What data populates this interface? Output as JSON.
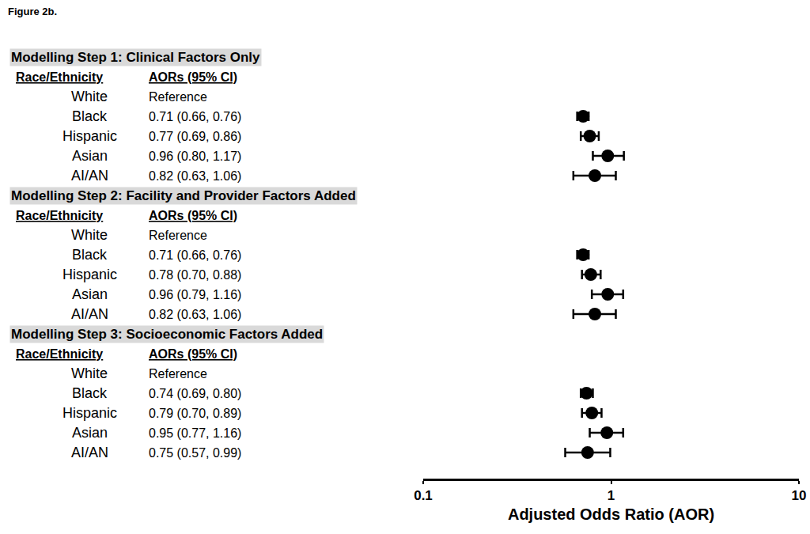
{
  "chart_data": {
    "type": "forest",
    "title": "Figure 2b.",
    "xlabel": "Adjusted Odds Ratio (AOR)",
    "log": "x",
    "grid": false,
    "xlim": [
      0.1,
      10
    ],
    "xticks": [
      0.1,
      1,
      10
    ],
    "reference_line": 1,
    "color": "#000000",
    "marker": "circle",
    "line_style": "dotted",
    "header": [
      "Race/Ethnicity",
      "AORs (95% CI)"
    ],
    "panels": [
      {
        "title": "Modelling Step 1: Clinical Factors Only",
        "categories": [
          "White",
          "Black",
          "Hispanic",
          "Asian",
          "AI/AN"
        ],
        "values": [
          null,
          0.71,
          0.77,
          0.96,
          0.82
        ],
        "lower": [
          null,
          0.66,
          0.69,
          0.8,
          0.63
        ],
        "upper": [
          null,
          0.76,
          0.86,
          1.17,
          1.06
        ],
        "value_labels": [
          "Reference",
          "0.71 (0.66, 0.76)",
          "0.77 (0.69, 0.86)",
          "0.96 (0.80, 1.17)",
          "0.82 (0.63, 1.06)"
        ]
      },
      {
        "title": "Modelling Step 2: Facility and Provider Factors Added",
        "categories": [
          "White",
          "Black",
          "Hispanic",
          "Asian",
          "AI/AN"
        ],
        "values": [
          null,
          0.71,
          0.78,
          0.96,
          0.82
        ],
        "lower": [
          null,
          0.66,
          0.7,
          0.79,
          0.63
        ],
        "upper": [
          null,
          0.76,
          0.88,
          1.16,
          1.06
        ],
        "value_labels": [
          "Reference",
          "0.71 (0.66, 0.76)",
          "0.78 (0.70, 0.88)",
          "0.96 (0.79, 1.16)",
          "0.82 (0.63, 1.06)"
        ]
      },
      {
        "title": "Modelling Step 3: Socioeconomic Factors Added",
        "categories": [
          "White",
          "Black",
          "Hispanic",
          "Asian",
          "AI/AN"
        ],
        "values": [
          null,
          0.74,
          0.79,
          0.95,
          0.75
        ],
        "lower": [
          null,
          0.69,
          0.7,
          0.77,
          0.57
        ],
        "upper": [
          null,
          0.8,
          0.89,
          1.16,
          0.99
        ],
        "value_labels": [
          "Reference",
          "0.74 (0.69, 0.80)",
          "0.79 (0.70, 0.89)",
          "0.95 (0.77, 1.16)",
          "0.75 (0.57, 0.99)"
        ]
      }
    ]
  }
}
